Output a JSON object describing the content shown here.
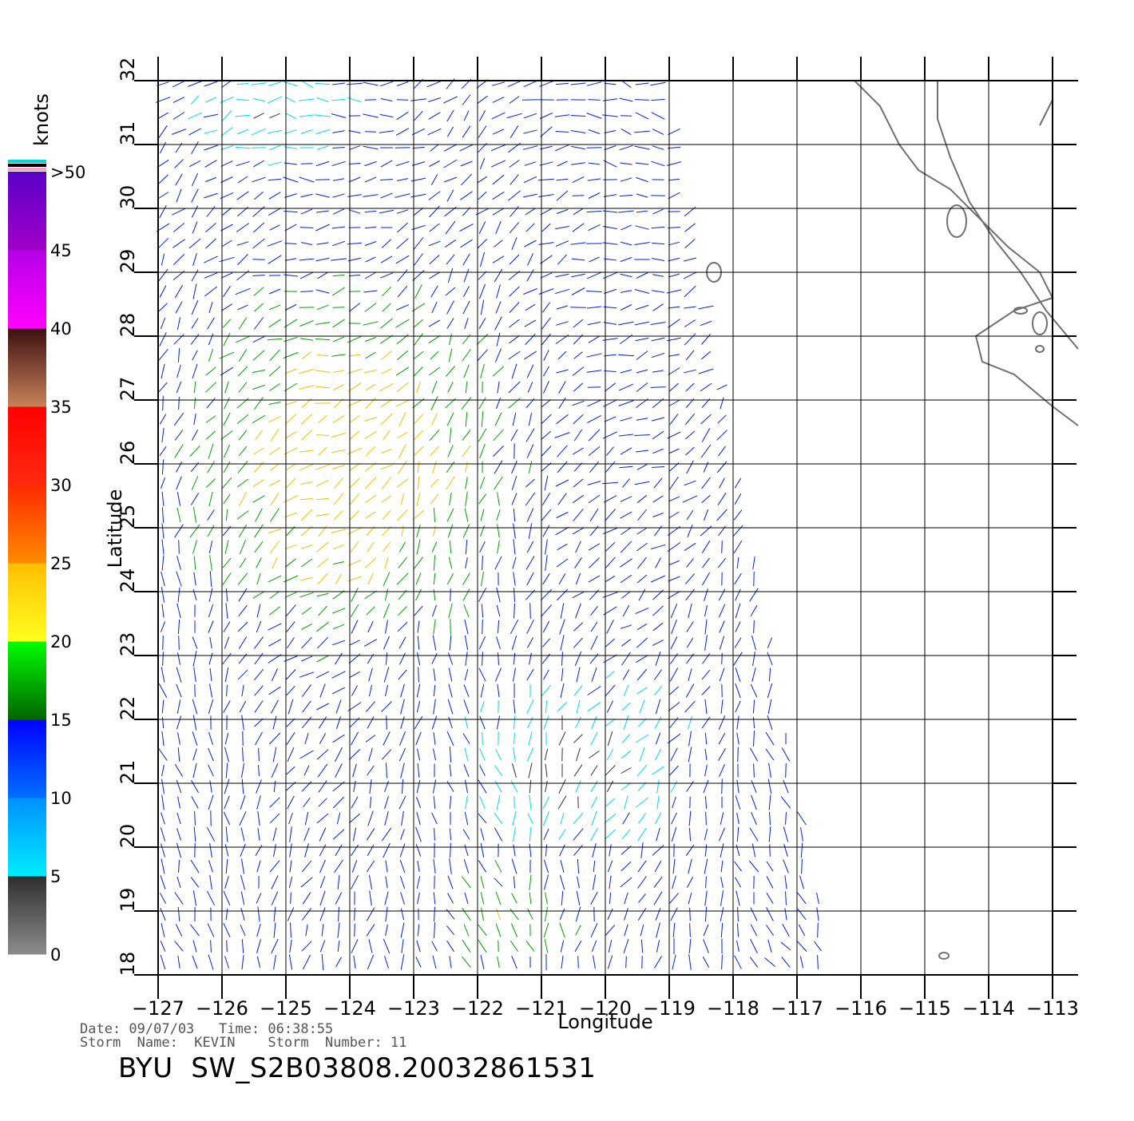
{
  "map": {
    "lon_range": [
      -127,
      -113
    ],
    "lat_range": [
      18,
      32
    ],
    "lon_ticks": [
      -127,
      -126,
      -125,
      -124,
      -123,
      -122,
      -121,
      -120,
      -119,
      -118,
      -117,
      -116,
      -115,
      -114,
      -113
    ],
    "lat_ticks": [
      18,
      19,
      20,
      21,
      22,
      23,
      24,
      25,
      26,
      27,
      28,
      29,
      30,
      31,
      32
    ],
    "x_label": "Longitude",
    "y_label": "Latitude",
    "grid": true,
    "swath": {
      "description_colors": "wind vectors colored by speed",
      "corners": [
        [
          -127,
          32
        ],
        [
          -119,
          32
        ],
        [
          -116.4,
          18
        ],
        [
          -127,
          18
        ]
      ]
    }
  },
  "colorbar": {
    "unit_label": "knots",
    "tick_labels": [
      "0",
      "5",
      "10",
      "15",
      "20",
      "25",
      "30",
      "35",
      "40",
      "45",
      ">50"
    ],
    "bands": [
      {
        "from": 0,
        "to": 5,
        "top": "#2e2e2e",
        "bottom": "#8c8c8c"
      },
      {
        "from": 5,
        "to": 10,
        "top": "#0090ff",
        "bottom": "#00ecff"
      },
      {
        "from": 10,
        "to": 15,
        "top": "#0000ff",
        "bottom": "#0070ff"
      },
      {
        "from": 15,
        "to": 20,
        "top": "#00ff00",
        "bottom": "#006400"
      },
      {
        "from": 20,
        "to": 25,
        "top": "#ffbe00",
        "bottom": "#ffff20"
      },
      {
        "from": 25,
        "to": 30,
        "top": "#ff2a00",
        "bottom": "#ff8c00"
      },
      {
        "from": 30,
        "to": 35,
        "top": "#ff0000",
        "bottom": "#ff2a10"
      },
      {
        "from": 35,
        "to": 40,
        "top": "#3c1010",
        "bottom": "#c8825a"
      },
      {
        "from": 40,
        "to": 45,
        "top": "#b400e6",
        "bottom": "#ff00ff"
      },
      {
        "from": 45,
        "to": 50,
        "top": "#5a00c8",
        "bottom": "#a000c8"
      }
    ],
    "stripe_colors": [
      "#00d8d8",
      "#000000",
      "#ffa0c8"
    ]
  },
  "info": {
    "line1": "Date: 09/07/03   Time: 06:38:55",
    "line2": "Storm  Name:  KEVIN    Storm  Number: 11",
    "title": "BYU  SW_S2B03808.20032861531"
  },
  "colors": {
    "coast": "#707070",
    "grid": "#000000",
    "speed_0_5": "#303030",
    "speed_5_10": "#00d8f0",
    "speed_10_15": "#0020e0",
    "speed_15_20": "#00a000",
    "speed_20_25": "#f0c000"
  }
}
